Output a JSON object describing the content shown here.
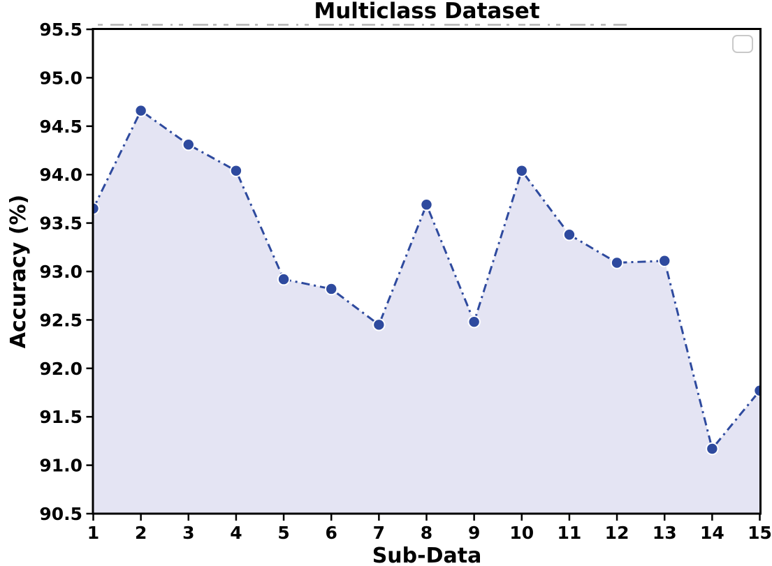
{
  "figure": {
    "title": "Multiclass Dataset",
    "xlabel": "Sub-Data",
    "ylabel": "Accuracy (%)"
  },
  "chart_data": {
    "type": "line",
    "title": "Multiclass Dataset",
    "xlabel": "Sub-Data",
    "ylabel": "Accuracy (%)",
    "x": [
      1,
      2,
      3,
      4,
      5,
      6,
      7,
      8,
      9,
      10,
      11,
      12,
      13,
      14,
      15
    ],
    "series": [
      {
        "name": "",
        "values": [
          93.65,
          94.66,
          94.31,
          94.04,
          92.92,
          92.82,
          92.45,
          93.69,
          92.48,
          94.04,
          93.38,
          93.09,
          93.11,
          91.17,
          91.77
        ]
      }
    ],
    "xlim": [
      1,
      15
    ],
    "ylim": [
      90.5,
      95.5
    ],
    "xtick_labels": [
      "1",
      "2",
      "3",
      "4",
      "5",
      "6",
      "7",
      "8",
      "9",
      "10",
      "11",
      "12",
      "13",
      "14",
      "15"
    ],
    "ytick_labels": [
      "90.5",
      "91.0",
      "91.5",
      "92.0",
      "92.5",
      "93.0",
      "93.5",
      "94.0",
      "94.5",
      "95.0",
      "95.5"
    ],
    "grid": false,
    "line_style": "dash-dot",
    "marker": "circle",
    "line_color": "#2e4a9e",
    "marker_color": "#2e4a9e",
    "marker_edge_color": "#ffffff",
    "fill_color": "#e4e4f3",
    "spine_color": "#000000",
    "legend": {
      "visible": true,
      "position": "upper right",
      "entries": [],
      "border_color": "#c9c9c9"
    }
  }
}
